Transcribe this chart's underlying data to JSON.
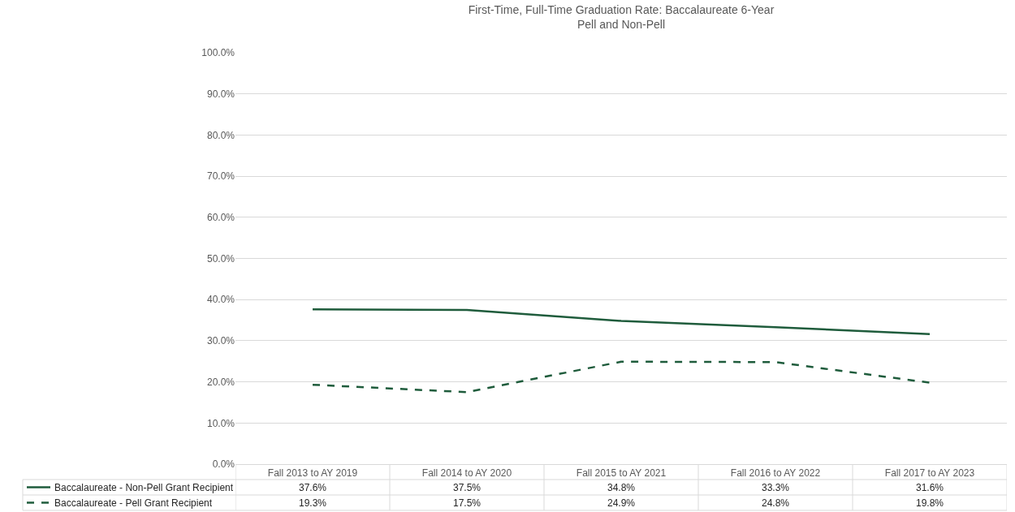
{
  "chart_data": {
    "type": "line",
    "title": "First-Time, Full-Time Graduation Rate: Baccalaureate 6-Year",
    "subtitle": "Pell and Non-Pell",
    "categories": [
      "Fall 2013 to AY 2019",
      "Fall 2014 to AY 2020",
      "Fall 2015 to AY 2021",
      "Fall 2016 to AY 2022",
      "Fall 2017 to AY 2023"
    ],
    "series": [
      {
        "name": "Baccalaureate - Non-Pell Grant Recipient",
        "color": "#1f5c3c",
        "line_style": "solid",
        "values": [
          37.6,
          37.5,
          34.8,
          33.3,
          31.6
        ],
        "value_labels": [
          "37.6%",
          "37.5%",
          "34.8%",
          "33.3%",
          "31.6%"
        ]
      },
      {
        "name": "Baccalaureate - Pell Grant Recipient",
        "color": "#1f5c3c",
        "line_style": "dashed",
        "values": [
          19.3,
          17.5,
          24.9,
          24.8,
          19.8
        ],
        "value_labels": [
          "19.3%",
          "17.5%",
          "24.9%",
          "24.8%",
          "19.8%"
        ]
      }
    ],
    "ylim": [
      0,
      100
    ],
    "yticks": [
      {
        "value": 0,
        "label": "0.0%"
      },
      {
        "value": 10,
        "label": "10.0%"
      },
      {
        "value": 20,
        "label": "20.0%"
      },
      {
        "value": 30,
        "label": "30.0%"
      },
      {
        "value": 40,
        "label": "40.0%"
      },
      {
        "value": 50,
        "label": "50.0%"
      },
      {
        "value": 60,
        "label": "60.0%"
      },
      {
        "value": 70,
        "label": "70.0%"
      },
      {
        "value": 80,
        "label": "80.0%"
      },
      {
        "value": 90,
        "label": "90.0%"
      },
      {
        "value": 100,
        "label": "100.0%"
      }
    ],
    "grid": "y",
    "legend": "bottom left",
    "marker": "none"
  }
}
